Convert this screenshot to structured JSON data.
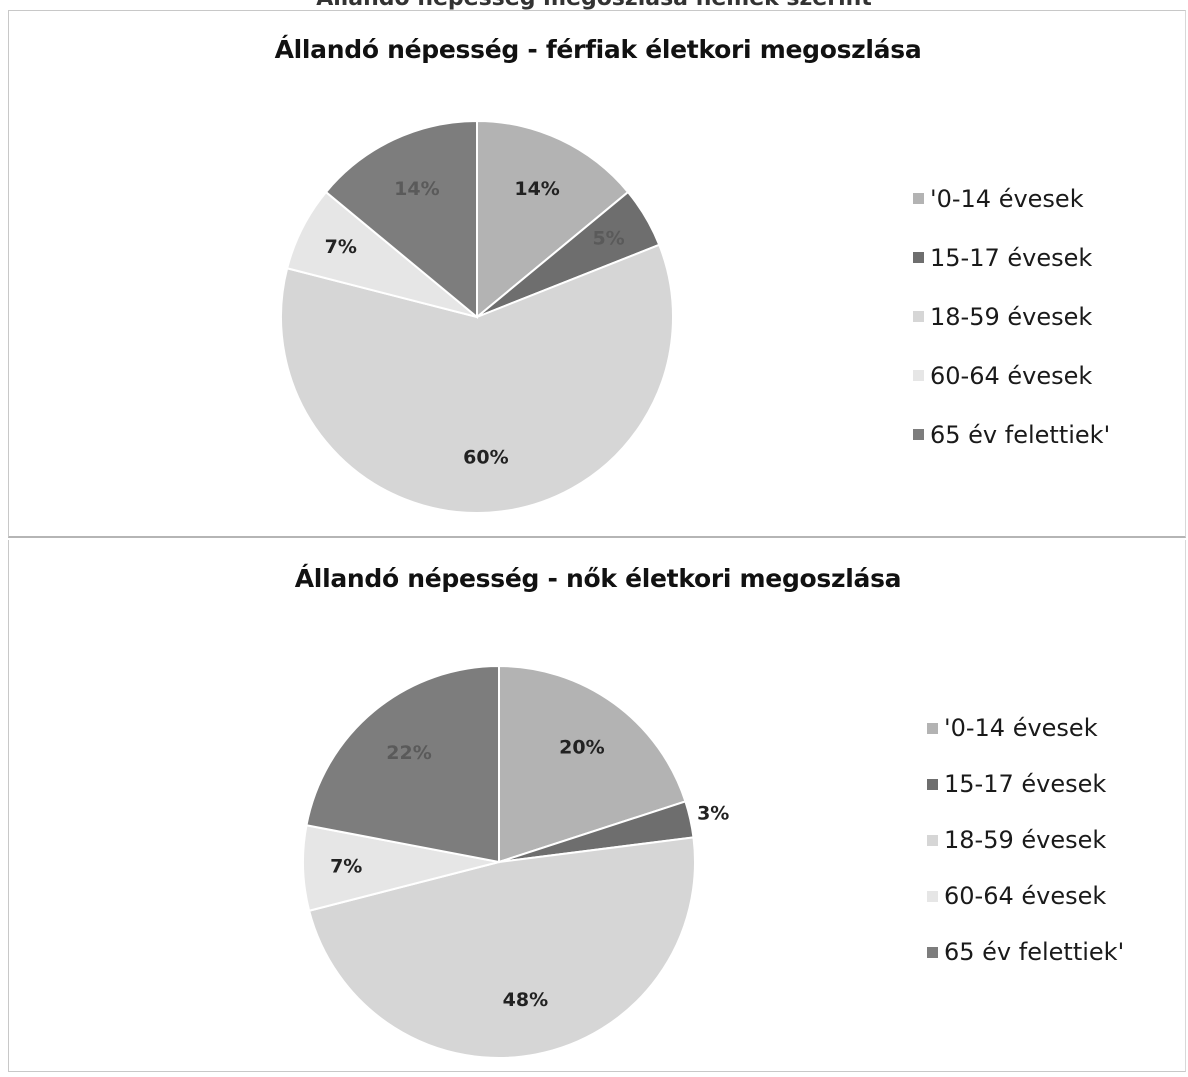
{
  "cut_caption": "Állandó népesség megoszlása nemek szerint",
  "colors": {
    "age_0_14": "#b3b3b3",
    "age_15_17": "#6e6e6e",
    "age_18_59": "#d6d6d6",
    "age_60_64": "#e6e6e6",
    "age_65_plus": "#7d7d7d",
    "separator": "#ffffff"
  },
  "chart_data": [
    {
      "type": "pie",
      "title": "Állandó népesség - férfiak életkori megoszlása",
      "categories": [
        "'0-14 évesek",
        "15-17 évesek",
        "18-59 évesek",
        "60-64 évesek",
        "65 év felettiek'"
      ],
      "values": [
        14,
        5,
        60,
        7,
        14
      ],
      "labels": [
        "14%",
        "5%",
        "60%",
        "7%",
        "14%"
      ],
      "legend_position": "right"
    },
    {
      "type": "pie",
      "title": "Állandó népesség - nők életkori megoszlása",
      "categories": [
        "'0-14 évesek",
        "15-17 évesek",
        "18-59 évesek",
        "60-64 évesek",
        "65 év felettiek'"
      ],
      "values": [
        20,
        3,
        48,
        7,
        22
      ],
      "labels": [
        "20%",
        "3%",
        "48%",
        "7%",
        "22%"
      ],
      "legend_position": "right"
    }
  ]
}
